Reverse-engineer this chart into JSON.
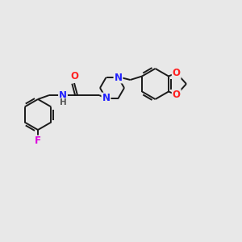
{
  "background_color": "#e8e8e8",
  "bond_color": "#1a1a1a",
  "bond_width": 1.4,
  "N_color": "#2020ff",
  "O_color": "#ff2020",
  "F_color": "#dd00dd",
  "H_color": "#555555",
  "figsize": [
    3.0,
    3.0
  ],
  "dpi": 100,
  "xlim": [
    0,
    300
  ],
  "ylim": [
    0,
    300
  ]
}
